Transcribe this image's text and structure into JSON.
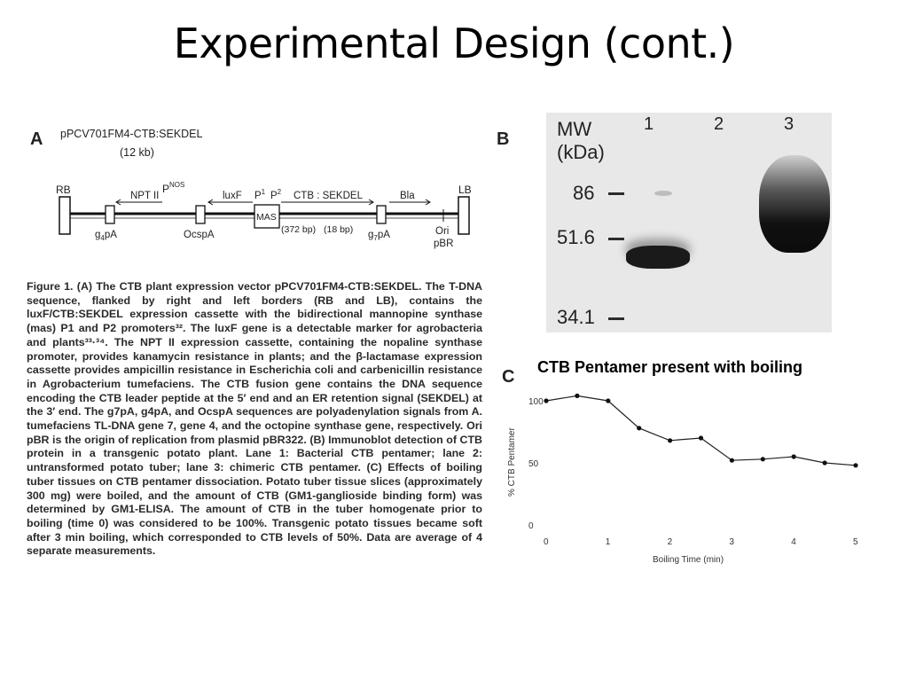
{
  "slide": {
    "title": "Experimental Design (cont.)"
  },
  "panel_a": {
    "letter": "A",
    "plasmid_name": "pPCV701FM4-CTB:SEKDEL",
    "size": "(12 kb)",
    "labels": {
      "rb": "RB",
      "lb": "LB",
      "npt": "NPT II",
      "pnos": "P",
      "pnos_sup": "NOS",
      "luxf": "luxF",
      "p1": "P",
      "p1_sup": "1",
      "p2": "P",
      "p2_sup": "2",
      "ctb": "CTB : SEKDEL",
      "bla": "Bla",
      "mas": "MAS",
      "g4pa": "g",
      "g4pa_sub": "4",
      "g4pa_tail": "pA",
      "ocspa": "OcspA",
      "bp372": "(372 bp)",
      "bp18": "(18 bp)",
      "g7pa": "g",
      "g7pa_sub": "7",
      "g7pa_tail": "pA",
      "ori": "Ori",
      "pbr": "pBR"
    }
  },
  "caption": {
    "text": "Figure 1. (A) The CTB plant expression vector pPCV701FM4-CTB:SEKDEL. The T-DNA sequence, flanked by right and left borders (RB and LB), contains the luxF/CTB:SEKDEL expression cassette with the bidirectional mannopine synthase (mas) P1 and P2 promoters³². The luxF gene is a detectable marker for agrobacteria and plants³³·³⁴. The NPT II expression cassette, containing the nopaline synthase promoter, provides kanamycin resistance in plants; and the β-lactamase expression cassette provides ampicillin resistance in Escherichia coli and carbenicillin resistance in Agrobacterium tumefaciens. The CTB fusion gene contains the DNA sequence encoding the CTB leader peptide at the 5′ end and an ER retention signal (SEKDEL) at the 3′ end. The g7pA, g4pA, and OcspA sequences are polyadenylation signals from A. tumefaciens TL-DNA gene 7, gene 4, and the octopine synthase gene, respectively. Ori pBR is the origin of replication from plasmid pBR322. (B) Immunoblot detection of CTB protein in a transgenic potato plant. Lane 1: Bacterial CTB pentamer; lane 2: untransformed potato tuber; lane 3: chimeric CTB pentamer. (C) Effects of boiling tuber tissues on CTB pentamer dissociation. Potato tuber tissue slices (approximately 300 mg) were boiled, and the amount of CTB (GM1-ganglioside binding form) was determined by GM1-ELISA. The amount of CTB in the tuber homogenate prior to boiling (time 0) was considered to be 100%. Transgenic potato tissues became soft after 3 min boiling, which corresponded to CTB levels of 50%. Data are average of 4 separate measurements."
  },
  "panel_b": {
    "letter": "B",
    "mw_label": "MW",
    "unit_label": "(kDa)",
    "lanes": [
      "1",
      "2",
      "3"
    ],
    "markers": [
      "86",
      "51.6",
      "34.1"
    ]
  },
  "panel_c": {
    "letter": "C",
    "note": "CTB Pentamer present with boiling"
  },
  "chart_data": {
    "type": "line",
    "title": "",
    "xlabel": "Boiling  Time   (min)",
    "ylabel": "%  CTB  Pentamer",
    "xlim": [
      0,
      5
    ],
    "ylim": [
      0,
      100
    ],
    "xticks": [
      0,
      1,
      2,
      3,
      4,
      5
    ],
    "yticks": [
      0,
      50,
      100
    ],
    "grid": false,
    "x": [
      0,
      0.5,
      1,
      1.5,
      2,
      2.5,
      3,
      3.5,
      4,
      4.5,
      5
    ],
    "values": [
      100,
      104,
      100,
      78,
      68,
      70,
      52,
      53,
      55,
      50,
      48
    ],
    "colors": {
      "line": "#222222",
      "marker": "#111111"
    }
  }
}
